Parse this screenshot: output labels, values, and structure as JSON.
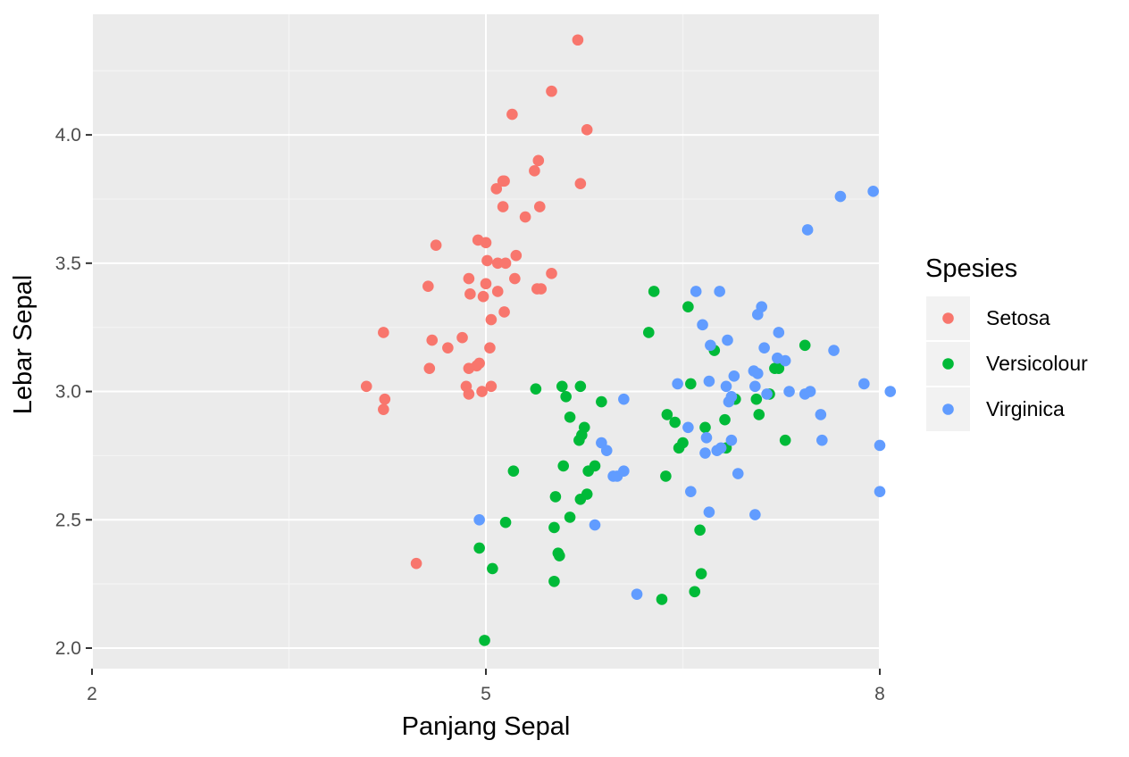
{
  "chart_data": {
    "type": "scatter",
    "title": "",
    "xlabel": "Panjang Sepal",
    "ylabel": "Lebar Sepal",
    "xlim": [
      2,
      8
    ],
    "ylim": [
      1.92,
      4.47
    ],
    "x_ticks": [
      2,
      5,
      8
    ],
    "x_tick_labels": [
      "2",
      "5",
      "8"
    ],
    "y_ticks": [
      2.0,
      2.5,
      3.0,
      3.5,
      4.0
    ],
    "y_tick_labels": [
      "2.0",
      "2.5",
      "3.0",
      "3.5",
      "4.0"
    ],
    "grid": true,
    "legend": {
      "title": "Spesies",
      "position": "right"
    },
    "series": [
      {
        "name": "Setosa",
        "color": "#F8766D",
        "points": [
          [
            5.7,
            4.37
          ],
          [
            5.5,
            4.17
          ],
          [
            5.2,
            4.08
          ],
          [
            5.77,
            4.02
          ],
          [
            5.4,
            3.9
          ],
          [
            5.37,
            3.86
          ],
          [
            5.14,
            3.82
          ],
          [
            5.13,
            3.82
          ],
          [
            5.72,
            3.81
          ],
          [
            5.08,
            3.79
          ],
          [
            5.3,
            3.68
          ],
          [
            5.13,
            3.72
          ],
          [
            5.41,
            3.72
          ],
          [
            4.94,
            3.59
          ],
          [
            5.0,
            3.58
          ],
          [
            4.62,
            3.57
          ],
          [
            5.23,
            3.53
          ],
          [
            5.01,
            3.51
          ],
          [
            5.09,
            3.5
          ],
          [
            5.15,
            3.5
          ],
          [
            4.87,
            3.44
          ],
          [
            5.22,
            3.44
          ],
          [
            5.5,
            3.46
          ],
          [
            4.56,
            3.41
          ],
          [
            5.0,
            3.42
          ],
          [
            5.42,
            3.4
          ],
          [
            5.39,
            3.4
          ],
          [
            4.98,
            3.37
          ],
          [
            5.09,
            3.39
          ],
          [
            4.88,
            3.38
          ],
          [
            5.14,
            3.31
          ],
          [
            5.04,
            3.28
          ],
          [
            4.22,
            3.23
          ],
          [
            4.59,
            3.2
          ],
          [
            4.82,
            3.21
          ],
          [
            4.71,
            3.17
          ],
          [
            5.03,
            3.17
          ],
          [
            4.95,
            3.11
          ],
          [
            4.93,
            3.1
          ],
          [
            4.87,
            3.09
          ],
          [
            4.57,
            3.09
          ],
          [
            4.09,
            3.02
          ],
          [
            4.85,
            3.02
          ],
          [
            4.97,
            3.0
          ],
          [
            4.87,
            2.99
          ],
          [
            5.04,
            3.02
          ],
          [
            4.23,
            2.97
          ],
          [
            4.22,
            2.93
          ],
          [
            4.47,
            2.33
          ]
        ]
      },
      {
        "name": "Versicolour",
        "color": "#00BA38",
        "points": [
          [
            6.28,
            3.39
          ],
          [
            6.54,
            3.33
          ],
          [
            6.24,
            3.23
          ],
          [
            6.56,
            3.03
          ],
          [
            5.38,
            3.01
          ],
          [
            5.58,
            3.02
          ],
          [
            5.72,
            3.02
          ],
          [
            5.61,
            2.98
          ],
          [
            5.88,
            2.96
          ],
          [
            6.67,
            2.86
          ],
          [
            6.9,
            2.97
          ],
          [
            7.06,
            2.97
          ],
          [
            7.16,
            2.99
          ],
          [
            7.23,
            3.09
          ],
          [
            7.08,
            2.91
          ],
          [
            7.43,
            3.18
          ],
          [
            7.2,
            3.09
          ],
          [
            6.74,
            3.16
          ],
          [
            5.64,
            2.9
          ],
          [
            5.75,
            2.86
          ],
          [
            5.73,
            2.83
          ],
          [
            5.71,
            2.81
          ],
          [
            6.38,
            2.91
          ],
          [
            6.44,
            2.88
          ],
          [
            6.82,
            2.89
          ],
          [
            6.5,
            2.8
          ],
          [
            6.47,
            2.78
          ],
          [
            7.28,
            2.81
          ],
          [
            6.83,
            2.78
          ],
          [
            5.78,
            2.69
          ],
          [
            5.83,
            2.71
          ],
          [
            5.59,
            2.71
          ],
          [
            5.21,
            2.69
          ],
          [
            6.37,
            2.67
          ],
          [
            5.53,
            2.59
          ],
          [
            5.77,
            2.6
          ],
          [
            5.72,
            2.58
          ],
          [
            5.64,
            2.51
          ],
          [
            5.15,
            2.49
          ],
          [
            5.52,
            2.47
          ],
          [
            6.63,
            2.46
          ],
          [
            5.55,
            2.37
          ],
          [
            5.56,
            2.36
          ],
          [
            4.95,
            2.39
          ],
          [
            5.05,
            2.31
          ],
          [
            6.64,
            2.29
          ],
          [
            5.52,
            2.26
          ],
          [
            6.59,
            2.22
          ],
          [
            6.34,
            2.19
          ],
          [
            4.99,
            2.03
          ]
        ]
      },
      {
        "name": "Virginica",
        "color": "#619CFF",
        "points": [
          [
            7.95,
            3.78
          ],
          [
            7.7,
            3.76
          ],
          [
            7.45,
            3.63
          ],
          [
            6.78,
            3.39
          ],
          [
            6.6,
            3.39
          ],
          [
            7.1,
            3.33
          ],
          [
            7.07,
            3.3
          ],
          [
            6.65,
            3.26
          ],
          [
            6.71,
            3.18
          ],
          [
            6.84,
            3.2
          ],
          [
            7.12,
            3.17
          ],
          [
            7.22,
            3.13
          ],
          [
            7.28,
            3.12
          ],
          [
            7.23,
            3.23
          ],
          [
            7.65,
            3.16
          ],
          [
            7.07,
            3.07
          ],
          [
            6.89,
            3.06
          ],
          [
            6.83,
            3.02
          ],
          [
            6.7,
            3.04
          ],
          [
            6.46,
            3.03
          ],
          [
            7.04,
            3.08
          ],
          [
            7.05,
            3.02
          ],
          [
            7.31,
            3.0
          ],
          [
            7.43,
            2.99
          ],
          [
            7.14,
            2.99
          ],
          [
            6.87,
            2.98
          ],
          [
            6.85,
            2.96
          ],
          [
            7.47,
            3.0
          ],
          [
            7.88,
            3.03
          ],
          [
            8.08,
            3.0
          ],
          [
            7.55,
            2.91
          ],
          [
            7.56,
            2.81
          ],
          [
            6.68,
            2.82
          ],
          [
            6.54,
            2.86
          ],
          [
            6.87,
            2.81
          ],
          [
            6.67,
            2.76
          ],
          [
            6.92,
            2.68
          ],
          [
            6.56,
            2.61
          ],
          [
            6.7,
            2.53
          ],
          [
            6.79,
            2.78
          ],
          [
            6.76,
            2.77
          ],
          [
            7.05,
            2.52
          ],
          [
            6.05,
            2.97
          ],
          [
            6.05,
            2.69
          ],
          [
            5.88,
            2.8
          ],
          [
            5.92,
            2.77
          ],
          [
            5.97,
            2.67
          ],
          [
            6.0,
            2.67
          ],
          [
            5.83,
            2.48
          ],
          [
            4.95,
            2.5
          ],
          [
            6.15,
            2.21
          ],
          [
            8.0,
            2.79
          ],
          [
            8.0,
            2.61
          ]
        ]
      }
    ]
  }
}
